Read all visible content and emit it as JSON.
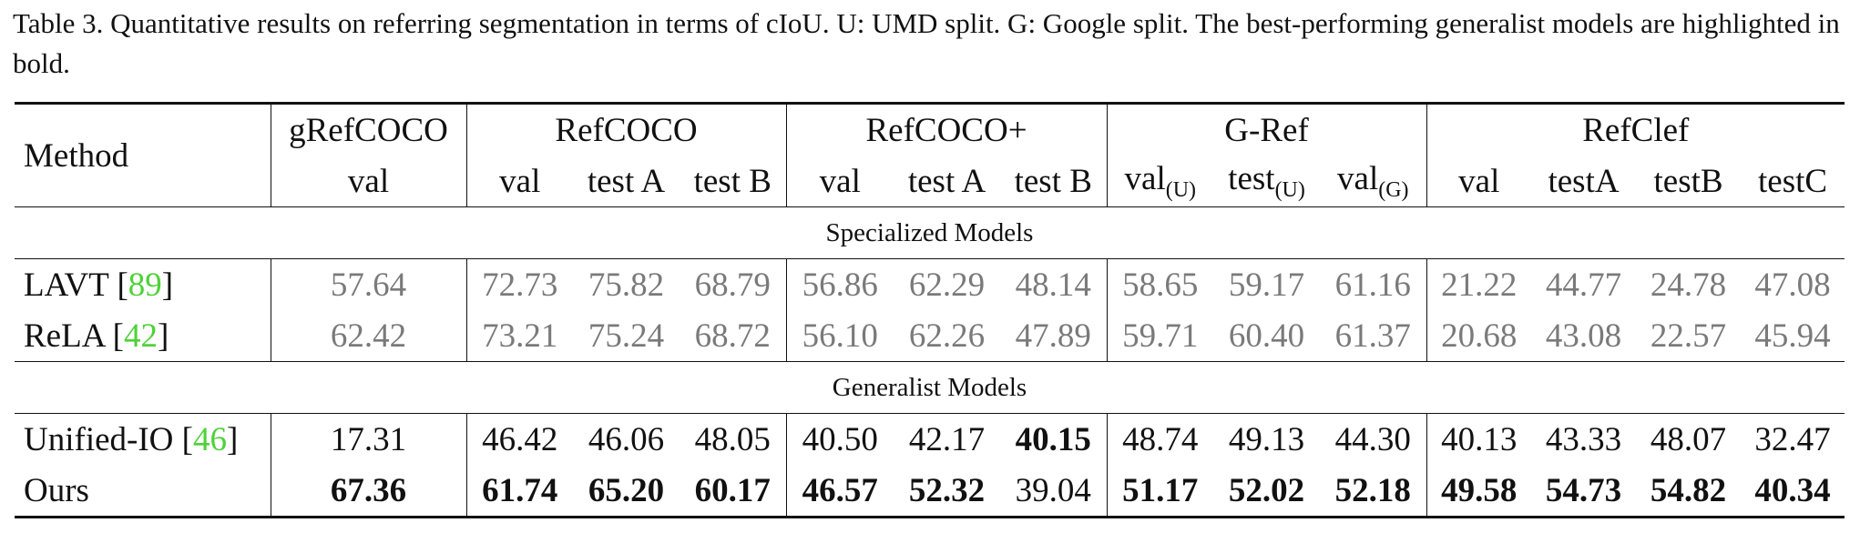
{
  "caption": "Table 3. Quantitative results on referring segmentation in terms of cIoU. U: UMD split. G: Google split. The best-performing generalist models are highlighted in bold.",
  "header": {
    "method": "Method",
    "groups": [
      {
        "name": "gRefCOCO",
        "cols": [
          {
            "text": "val"
          }
        ]
      },
      {
        "name": "RefCOCO",
        "cols": [
          {
            "text": "val"
          },
          {
            "text": "test A"
          },
          {
            "text": "test B"
          }
        ]
      },
      {
        "name": "RefCOCO+",
        "cols": [
          {
            "text": "val"
          },
          {
            "text": "test A"
          },
          {
            "text": "test B"
          }
        ]
      },
      {
        "name": "G-Ref",
        "cols": [
          {
            "text": "val",
            "sub": "(U)"
          },
          {
            "text": "test",
            "sub": "(U)"
          },
          {
            "text": "val",
            "sub": "(G)"
          }
        ]
      },
      {
        "name": "RefClef",
        "cols": [
          {
            "text": "val"
          },
          {
            "text": "testA"
          },
          {
            "text": "testB"
          },
          {
            "text": "testC"
          }
        ]
      }
    ]
  },
  "sections": [
    {
      "title": "Specialized Models",
      "muted": true,
      "rows": [
        {
          "method": {
            "text": "LAVT [",
            "cite": "89",
            "after": "]"
          },
          "values": [
            "57.64",
            "72.73",
            "75.82",
            "68.79",
            "56.86",
            "62.29",
            "48.14",
            "58.65",
            "59.17",
            "61.16",
            "21.22",
            "44.77",
            "24.78",
            "47.08"
          ],
          "bold": [
            false,
            false,
            false,
            false,
            false,
            false,
            false,
            false,
            false,
            false,
            false,
            false,
            false,
            false
          ]
        },
        {
          "method": {
            "text": "ReLA [",
            "cite": "42",
            "after": "]"
          },
          "values": [
            "62.42",
            "73.21",
            "75.24",
            "68.72",
            "56.10",
            "62.26",
            "47.89",
            "59.71",
            "60.40",
            "61.37",
            "20.68",
            "43.08",
            "22.57",
            "45.94"
          ],
          "bold": [
            false,
            false,
            false,
            false,
            false,
            false,
            false,
            false,
            false,
            false,
            false,
            false,
            false,
            false
          ]
        }
      ]
    },
    {
      "title": "Generalist Models",
      "muted": false,
      "rows": [
        {
          "method": {
            "text": "Unified-IO [",
            "cite": "46",
            "after": "]"
          },
          "values": [
            "17.31",
            "46.42",
            "46.06",
            "48.05",
            "40.50",
            "42.17",
            "40.15",
            "48.74",
            "49.13",
            "44.30",
            "40.13",
            "43.33",
            "48.07",
            "32.47"
          ],
          "bold": [
            false,
            false,
            false,
            false,
            false,
            false,
            true,
            false,
            false,
            false,
            false,
            false,
            false,
            false
          ]
        },
        {
          "method": {
            "text": "Ours"
          },
          "values": [
            "67.36",
            "61.74",
            "65.20",
            "60.17",
            "46.57",
            "52.32",
            "39.04",
            "51.17",
            "52.02",
            "52.18",
            "49.58",
            "54.73",
            "54.82",
            "40.34"
          ],
          "bold": [
            true,
            true,
            true,
            true,
            true,
            true,
            false,
            true,
            true,
            true,
            true,
            true,
            true,
            true
          ]
        }
      ]
    }
  ]
}
